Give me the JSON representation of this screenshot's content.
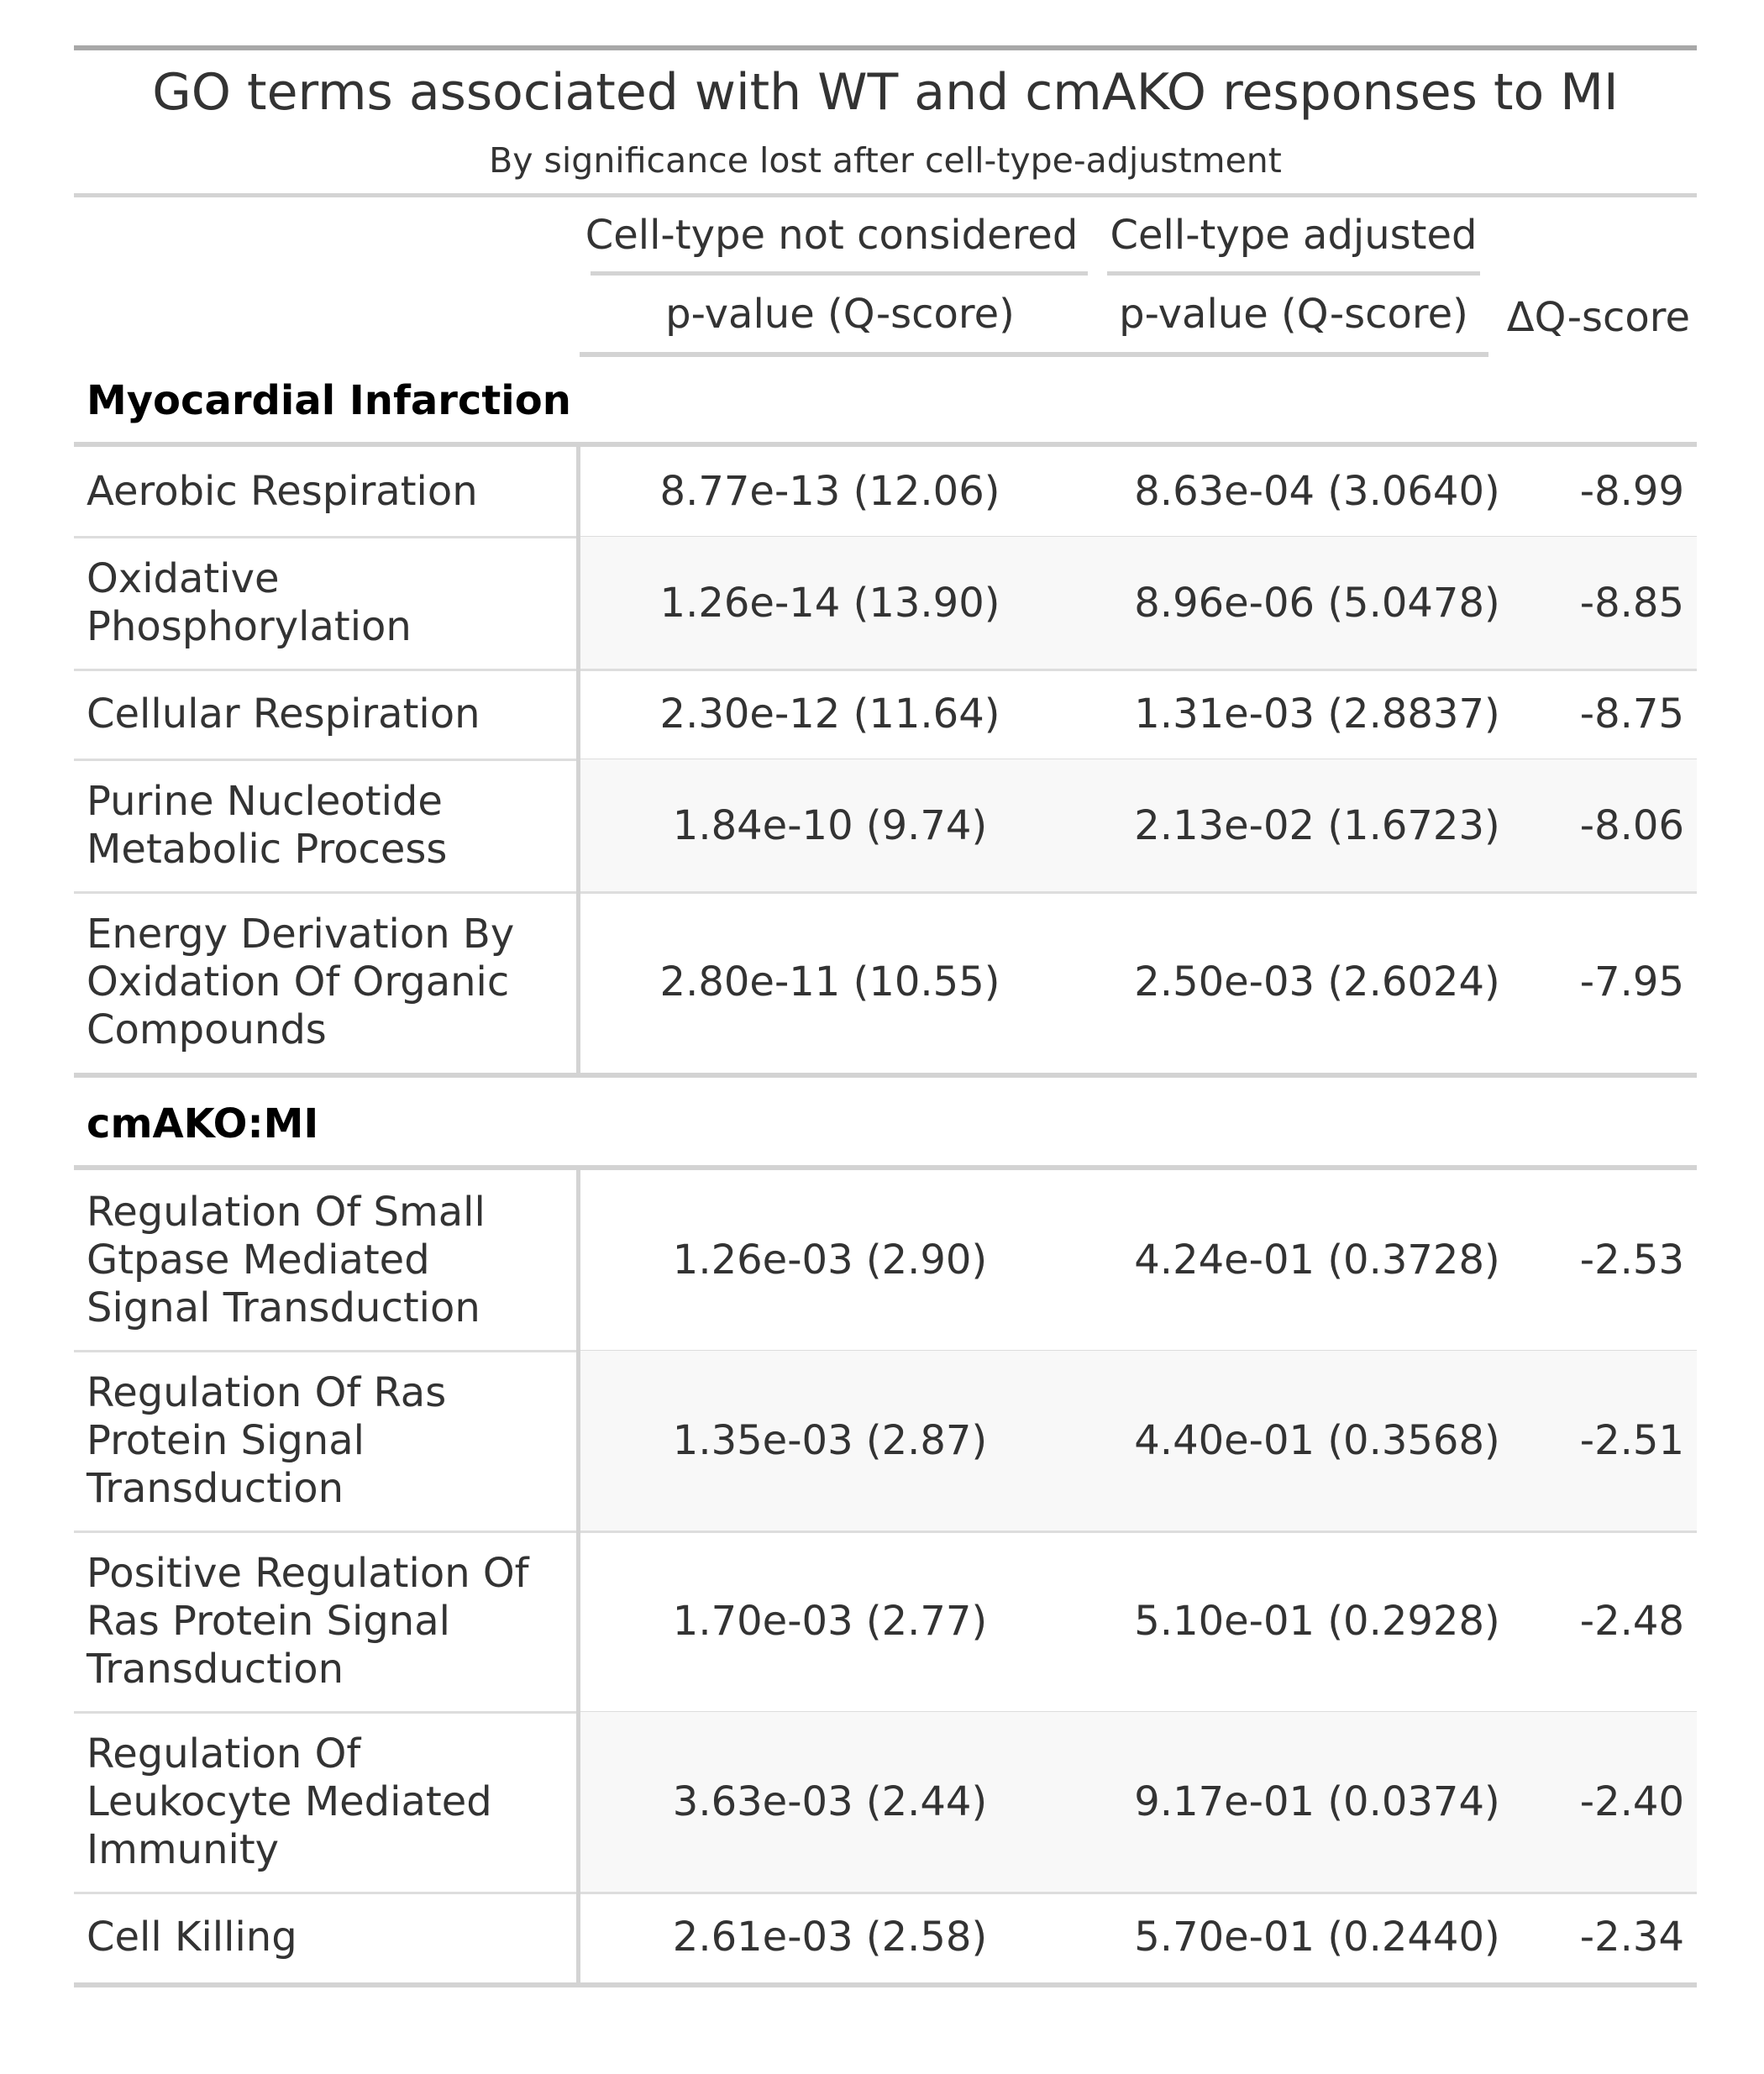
{
  "chart_data": {
    "type": "table",
    "title": "GO terms associated with WT and cmAKO responses to MI",
    "subtitle": "By significance lost after cell-type-adjustment",
    "spanners": [
      "Cell-type not considered",
      "Cell-type adjusted"
    ],
    "columns": [
      "",
      "p-value (Q-score)",
      "p-value (Q-score)",
      "ΔQ-score"
    ],
    "groups": [
      {
        "label": "Myocardial Infarction",
        "rows": [
          {
            "term": "Aerobic Respiration",
            "p_unadj": "8.77e-13 (12.06)",
            "p_adj": "8.63e-04 (3.0640)",
            "dq": "-8.99"
          },
          {
            "term": "Oxidative\nPhosphorylation",
            "p_unadj": "1.26e-14 (13.90)",
            "p_adj": "8.96e-06 (5.0478)",
            "dq": "-8.85"
          },
          {
            "term": "Cellular Respiration",
            "p_unadj": "2.30e-12 (11.64)",
            "p_adj": "1.31e-03 (2.8837)",
            "dq": "-8.75"
          },
          {
            "term": "Purine Nucleotide\nMetabolic Process",
            "p_unadj": "1.84e-10 (9.74)",
            "p_adj": "2.13e-02 (1.6723)",
            "dq": "-8.06"
          },
          {
            "term": "Energy Derivation By\nOxidation Of Organic\nCompounds",
            "p_unadj": "2.80e-11 (10.55)",
            "p_adj": "2.50e-03 (2.6024)",
            "dq": "-7.95"
          }
        ]
      },
      {
        "label": "cmAKO:MI",
        "rows": [
          {
            "term": "Regulation Of Small\nGtpase Mediated\nSignal Transduction",
            "p_unadj": "1.26e-03 (2.90)",
            "p_adj": "4.24e-01 (0.3728)",
            "dq": "-2.53"
          },
          {
            "term": "Regulation Of Ras\nProtein Signal\nTransduction",
            "p_unadj": "1.35e-03 (2.87)",
            "p_adj": "4.40e-01 (0.3568)",
            "dq": "-2.51"
          },
          {
            "term": "Positive Regulation Of\nRas Protein Signal\nTransduction",
            "p_unadj": "1.70e-03 (2.77)",
            "p_adj": "5.10e-01 (0.2928)",
            "dq": "-2.48"
          },
          {
            "term": "Regulation Of\nLeukocyte Mediated\nImmunity",
            "p_unadj": "3.63e-03 (2.44)",
            "p_adj": "9.17e-01 (0.0374)",
            "dq": "-2.40"
          },
          {
            "term": "Cell Killing",
            "p_unadj": "2.61e-03 (2.58)",
            "p_adj": "5.70e-01 (0.2440)",
            "dq": "-2.34"
          }
        ]
      }
    ]
  }
}
